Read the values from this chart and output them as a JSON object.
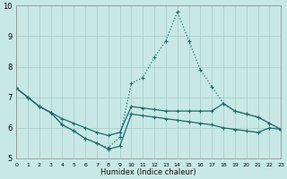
{
  "bg_color": "#c8e8e6",
  "grid_color": "#a8ceca",
  "line_color": "#1a6b6b",
  "xlabel": "Humidex (Indice chaleur)",
  "xlim": [
    0,
    23
  ],
  "ylim": [
    5,
    10
  ],
  "yticks": [
    5,
    6,
    7,
    8,
    9,
    10
  ],
  "xticks": [
    0,
    1,
    2,
    3,
    4,
    5,
    6,
    7,
    8,
    9,
    10,
    11,
    12,
    13,
    14,
    15,
    16,
    17,
    18,
    19,
    20,
    21,
    22,
    23
  ],
  "series": [
    {
      "x": [
        0,
        1,
        2,
        3,
        4,
        5,
        6,
        7,
        8,
        9,
        10,
        11,
        12,
        13,
        14,
        15,
        16,
        17,
        18,
        19,
        20,
        21,
        22,
        23
      ],
      "y": [
        7.3,
        7.0,
        6.7,
        6.5,
        6.1,
        5.9,
        5.65,
        5.5,
        5.35,
        5.7,
        7.45,
        7.65,
        8.3,
        8.85,
        9.8,
        8.85,
        7.9,
        7.35,
        6.8,
        6.55,
        6.45,
        6.35,
        6.15,
        5.95
      ],
      "linestyle": "dotted",
      "linewidth": 0.9
    },
    {
      "x": [
        0,
        1,
        2,
        3,
        4,
        5,
        6,
        7,
        8,
        9,
        10,
        11,
        12,
        13,
        14,
        15,
        16,
        17,
        18,
        19,
        20,
        21,
        22,
        23
      ],
      "y": [
        7.3,
        7.0,
        6.7,
        6.5,
        6.3,
        6.15,
        6.0,
        5.85,
        5.75,
        5.85,
        6.7,
        6.65,
        6.6,
        6.55,
        6.55,
        6.55,
        6.55,
        6.55,
        6.8,
        6.55,
        6.45,
        6.35,
        6.15,
        5.95
      ],
      "linestyle": "solid",
      "linewidth": 0.9
    },
    {
      "x": [
        0,
        1,
        2,
        3,
        4,
        5,
        6,
        7,
        8,
        9,
        10,
        11,
        12,
        13,
        14,
        15,
        16,
        17,
        18,
        19,
        20,
        21,
        22,
        23
      ],
      "y": [
        7.3,
        7.0,
        6.7,
        6.5,
        6.1,
        5.9,
        5.65,
        5.5,
        5.3,
        5.4,
        6.45,
        6.4,
        6.35,
        6.3,
        6.25,
        6.2,
        6.15,
        6.1,
        6.0,
        5.95,
        5.9,
        5.85,
        6.0,
        5.95
      ],
      "linestyle": "solid",
      "linewidth": 0.9
    }
  ]
}
